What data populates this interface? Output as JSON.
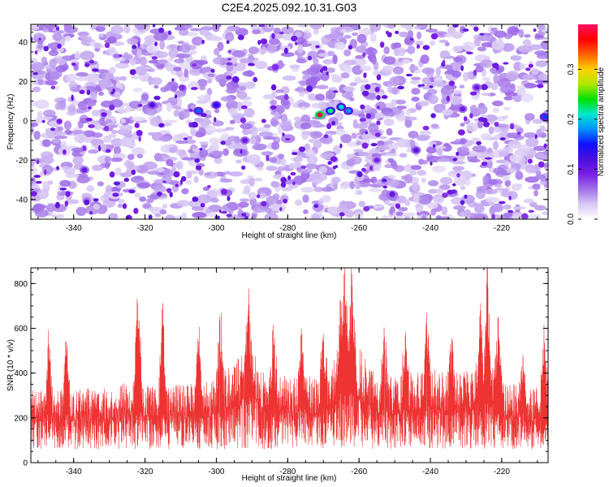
{
  "figure_title": "C2E4.2025.092.10.31.G03",
  "chart_data": [
    {
      "type": "heatmap",
      "xlabel": "Height of straight line (km)",
      "ylabel": "Frequency (Hz)",
      "xlim": [
        -352,
        -207
      ],
      "ylim": [
        -50,
        49
      ],
      "x_ticks": [
        -340,
        -320,
        -300,
        -280,
        -260,
        -240,
        -220
      ],
      "y_ticks": [
        -40,
        -20,
        0,
        20,
        40
      ],
      "colorbar": {
        "label": "Normalized spectral amplitude",
        "range": [
          0.0,
          0.39
        ],
        "ticks": [
          0.0,
          0.1,
          0.2,
          0.3
        ],
        "colormap": [
          "#ffffff",
          "#d8c8f4",
          "#a070e8",
          "#7a1ee6",
          "#4a10d8",
          "#1010ff",
          "#0090ff",
          "#00e8d0",
          "#00e000",
          "#b0e800",
          "#ffd000",
          "#ff6000",
          "#ff0000",
          "#ff1060"
        ]
      },
      "peaks": [
        {
          "x": -271,
          "y": 3,
          "value": 0.38
        },
        {
          "x": -268,
          "y": 5,
          "value": 0.22
        },
        {
          "x": -265,
          "y": 7,
          "value": 0.2
        },
        {
          "x": -263,
          "y": 5,
          "value": 0.18
        },
        {
          "x": -305,
          "y": 5,
          "value": 0.17
        },
        {
          "x": -300,
          "y": 8,
          "value": 0.14
        },
        {
          "x": -208,
          "y": 2,
          "value": 0.16
        },
        {
          "x": -318,
          "y": 8,
          "value": 0.12
        },
        {
          "x": -337,
          "y": -25,
          "value": 0.1
        },
        {
          "x": -244,
          "y": -15,
          "value": 0.11
        },
        {
          "x": -231,
          "y": 6,
          "value": 0.1
        },
        {
          "x": -227,
          "y": 17,
          "value": 0.1
        },
        {
          "x": -292,
          "y": -10,
          "value": 0.1
        },
        {
          "x": -255,
          "y": -20,
          "value": 0.09
        }
      ]
    },
    {
      "type": "line",
      "xlabel": "Height of straight line (km)",
      "ylabel": "SNR (10 * v/v)",
      "xlim": [
        -352,
        -207
      ],
      "ylim": [
        0,
        870
      ],
      "x_ticks": [
        -340,
        -320,
        -300,
        -280,
        -260,
        -240,
        -220
      ],
      "y_ticks": [
        0,
        200,
        400,
        600,
        800
      ],
      "color": "#ee3333",
      "noise_floor": 60,
      "baseline": [
        {
          "x": -352,
          "y": 170
        },
        {
          "x": -340,
          "y": 175
        },
        {
          "x": -330,
          "y": 175
        },
        {
          "x": -322,
          "y": 200
        },
        {
          "x": -318,
          "y": 180
        },
        {
          "x": -312,
          "y": 185
        },
        {
          "x": -300,
          "y": 195
        },
        {
          "x": -295,
          "y": 245
        },
        {
          "x": -290,
          "y": 265
        },
        {
          "x": -286,
          "y": 200
        },
        {
          "x": -280,
          "y": 205
        },
        {
          "x": -275,
          "y": 200
        },
        {
          "x": -268,
          "y": 225
        },
        {
          "x": -264,
          "y": 300
        },
        {
          "x": -260,
          "y": 275
        },
        {
          "x": -255,
          "y": 200
        },
        {
          "x": -250,
          "y": 210
        },
        {
          "x": -245,
          "y": 215
        },
        {
          "x": -240,
          "y": 225
        },
        {
          "x": -235,
          "y": 210
        },
        {
          "x": -228,
          "y": 220
        },
        {
          "x": -224,
          "y": 245
        },
        {
          "x": -219,
          "y": 190
        },
        {
          "x": -212,
          "y": 180
        },
        {
          "x": -207,
          "y": 175
        }
      ],
      "peaks": [
        {
          "x": -347,
          "y": 530
        },
        {
          "x": -342,
          "y": 540
        },
        {
          "x": -322,
          "y": 715
        },
        {
          "x": -315,
          "y": 705
        },
        {
          "x": -305,
          "y": 540
        },
        {
          "x": -299,
          "y": 610
        },
        {
          "x": -291,
          "y": 650
        },
        {
          "x": -284,
          "y": 505
        },
        {
          "x": -276,
          "y": 575
        },
        {
          "x": -270,
          "y": 575
        },
        {
          "x": -265,
          "y": 650
        },
        {
          "x": -264,
          "y": 860
        },
        {
          "x": -262,
          "y": 690
        },
        {
          "x": -253,
          "y": 545
        },
        {
          "x": -247,
          "y": 540
        },
        {
          "x": -241,
          "y": 590
        },
        {
          "x": -234,
          "y": 520
        },
        {
          "x": -226,
          "y": 650
        },
        {
          "x": -224,
          "y": 840
        },
        {
          "x": -221,
          "y": 590
        },
        {
          "x": -214,
          "y": 470
        },
        {
          "x": -208,
          "y": 535
        }
      ]
    }
  ]
}
